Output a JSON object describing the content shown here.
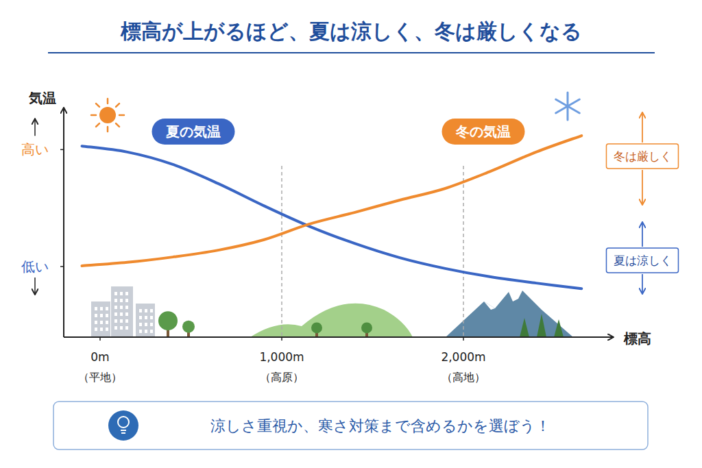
{
  "chart_data": {
    "type": "line",
    "title": "標高が上がるほど、夏は涼しく、冬は厳しくなる",
    "x_label": "標高",
    "y_label": "気温",
    "x": [
      -100,
      150,
      400,
      650,
      900,
      1150,
      1400,
      1650,
      1900,
      2150,
      2400,
      2650
    ],
    "series": [
      {
        "name": "夏の気温",
        "color": "#3a66c4",
        "values": [
          86.6,
          83.9,
          78.3,
          69.6,
          59.6,
          50.3,
          42.5,
          36.0,
          31.1,
          27.3,
          24.5,
          22.0
        ]
      },
      {
        "name": "冬の気温",
        "color": "#ef8a2e",
        "values": [
          32.3,
          33.9,
          36.3,
          39.4,
          44.1,
          51.2,
          56.5,
          62.1,
          67.4,
          75.2,
          83.9,
          91.3
        ]
      }
    ],
    "xlim": [
      -200,
      2800
    ],
    "xticks": [
      {
        "value": 0,
        "label": "0m"
      },
      {
        "value": 1000,
        "label": "1,000m"
      },
      {
        "value": 2000,
        "label": "2,000m"
      }
    ],
    "ylim": [
      0,
      100
    ],
    "yticks": [
      {
        "value": 32,
        "label": "低い"
      },
      {
        "value": 85,
        "label": "高い"
      }
    ],
    "grid": true,
    "legend": "top",
    "annotations": {
      "x_tick_notes": [
        "（平地）",
        "（高原）",
        "（高地）"
      ],
      "side_notes": [
        "冬は厳しく",
        "夏は涼しく"
      ],
      "tip": "涼しさ重視か、寒さ対策まで含めるかを選ぼう！"
    }
  }
}
